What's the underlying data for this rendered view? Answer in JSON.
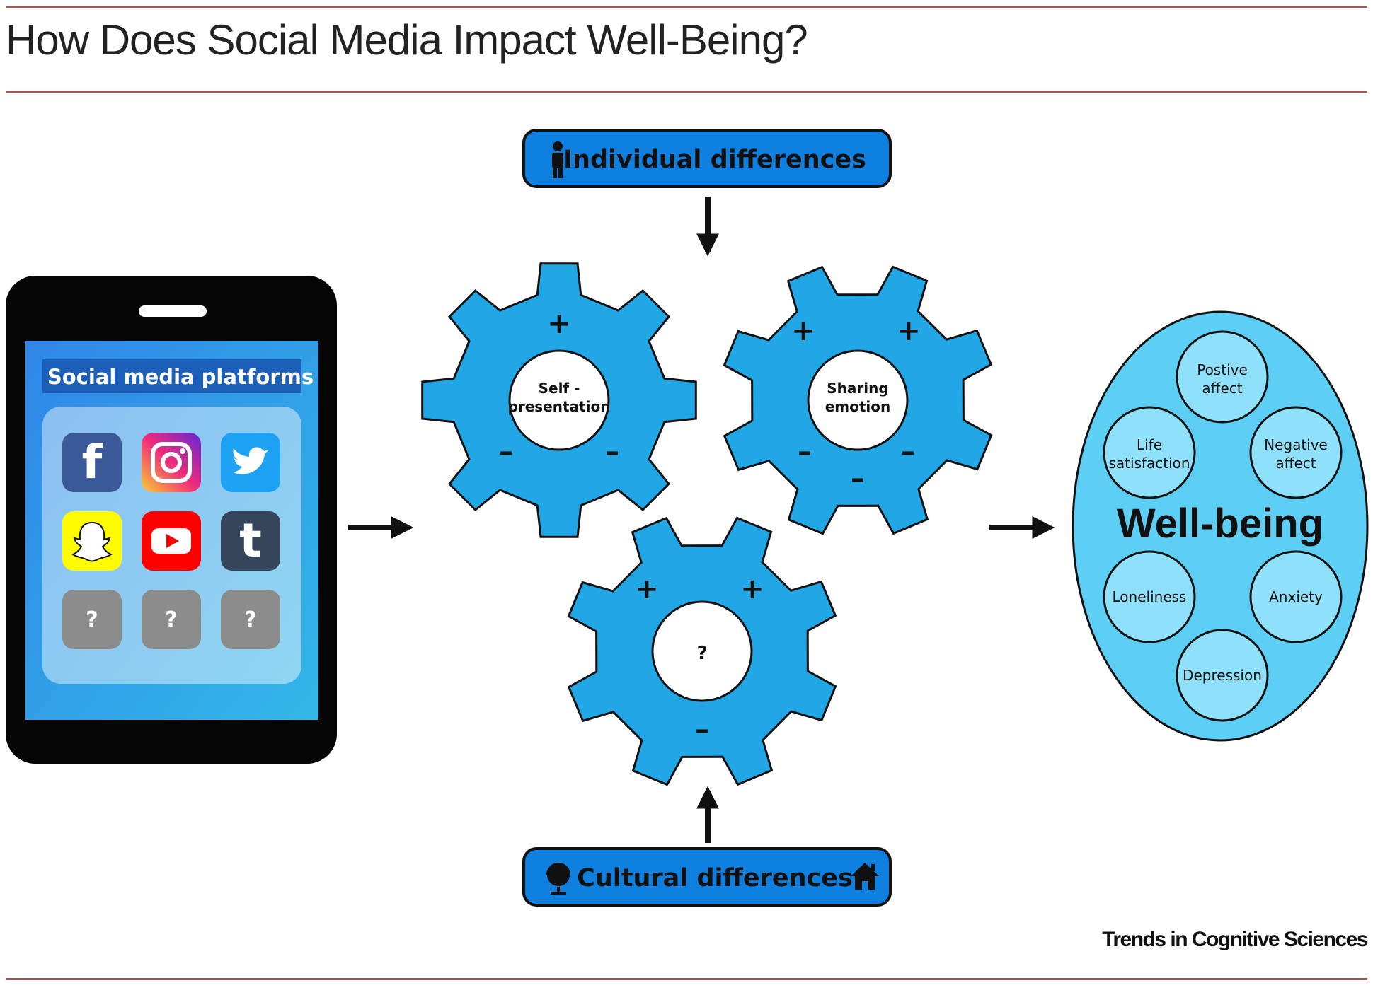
{
  "header": {
    "title": "How Does Social Media Impact Well-Being?"
  },
  "footer": {
    "credit": "Trends in Cognitive Sciences"
  },
  "phone": {
    "heading": "Social media platforms",
    "apps": [
      {
        "name": "facebook-icon",
        "glyph": "f",
        "color": "#3b5998"
      },
      {
        "name": "instagram-icon",
        "glyph": "",
        "color": "#d6249f"
      },
      {
        "name": "twitter-icon",
        "glyph": "",
        "color": "#1da1f2"
      },
      {
        "name": "snapchat-icon",
        "glyph": "",
        "color": "#fffc00"
      },
      {
        "name": "youtube-icon",
        "glyph": "",
        "color": "#ff0000"
      },
      {
        "name": "tumblr-icon",
        "glyph": "t",
        "color": "#35465c"
      },
      {
        "name": "unknown-app-icon",
        "glyph": "?",
        "color": "#8c8c8c"
      },
      {
        "name": "unknown-app-icon",
        "glyph": "?",
        "color": "#8c8c8c"
      },
      {
        "name": "unknown-app-icon",
        "glyph": "?",
        "color": "#8c8c8c"
      }
    ]
  },
  "moderators": {
    "individual": "Individual differences",
    "cultural": "Cultural differences"
  },
  "gears": {
    "self_presentation": {
      "line1": "Self -",
      "line2": "presentation"
    },
    "sharing_emotion": {
      "line1": "Sharing",
      "line2": "emotion"
    },
    "unknown": {
      "label": "?"
    },
    "plus": "+",
    "minus": "–"
  },
  "wellbeing": {
    "title": "Well-being",
    "outcomes": {
      "positive_affect": {
        "line1": "Postive",
        "line2": "affect"
      },
      "life_satisfaction": {
        "line1": "Life",
        "line2": "satisfaction"
      },
      "negative_affect": {
        "line1": "Negative",
        "line2": "affect"
      },
      "loneliness": "Loneliness",
      "anxiety": "Anxiety",
      "depression": "Depression"
    }
  },
  "colors": {
    "rule": "#9a5a5a",
    "gear_fill": "#21a6e6",
    "box_fill": "#0f7fe0",
    "ellipse_fill": "#5dcff5",
    "outcome_fill": "#8fe0fa",
    "phone_body": "#050505"
  }
}
